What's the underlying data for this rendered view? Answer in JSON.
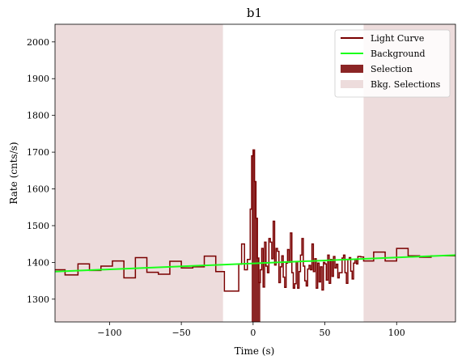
{
  "chart_data": {
    "type": "line",
    "title": "b1",
    "xlabel": "Time (s)",
    "ylabel": "Rate (cnts/s)",
    "xlim": [
      -138,
      141
    ],
    "ylim": [
      1238,
      2048
    ],
    "xticks": [
      -100,
      -50,
      0,
      50,
      100
    ],
    "yticks": [
      1300,
      1400,
      1500,
      1600,
      1700,
      1800,
      1900,
      2000
    ],
    "xtick_labels": [
      "−100",
      "−50",
      "0",
      "50",
      "100"
    ],
    "ytick_labels": [
      "1300",
      "1400",
      "1500",
      "1600",
      "1700",
      "1800",
      "1900",
      "2000"
    ],
    "grid": false,
    "legend_position": "upper right",
    "legend": [
      {
        "label": "Light Curve",
        "kind": "line",
        "color": "#7a0000"
      },
      {
        "label": "Background",
        "kind": "line",
        "color": "#1aff1a"
      },
      {
        "label": "Selection",
        "kind": "patch",
        "color": "#8b2525"
      },
      {
        "label": "Bkg. Selections",
        "kind": "patch",
        "color": "#eddcdc"
      }
    ],
    "bkg_selections": [
      [
        -138,
        -21
      ],
      [
        77,
        141
      ]
    ],
    "selection": [
      -1,
      5
    ],
    "background_line": {
      "x": [
        -138,
        141
      ],
      "y": [
        1375,
        1420
      ]
    },
    "light_curve": {
      "step_edges": [
        -138,
        -131,
        -122,
        -114,
        -106,
        -98,
        -90,
        -82,
        -74,
        -66,
        -58,
        -50,
        -42,
        -34,
        -26,
        -20,
        -10,
        -8,
        -6,
        -4,
        -2,
        -1,
        0,
        1,
        2,
        3,
        4,
        5,
        6,
        7,
        8,
        9,
        10,
        11,
        12,
        13,
        14,
        15,
        16,
        17,
        18,
        19,
        20,
        21,
        22,
        23,
        24,
        25,
        26,
        27,
        28,
        29,
        30,
        31,
        32,
        33,
        34,
        35,
        36,
        37,
        38,
        39,
        40,
        41,
        42,
        43,
        44,
        45,
        46,
        47,
        48,
        49,
        50,
        51,
        52,
        53,
        54,
        55,
        56,
        57,
        58,
        59,
        60,
        61,
        62,
        63,
        64,
        65,
        66,
        67,
        68,
        69,
        70,
        71,
        72,
        73,
        74,
        75,
        76,
        77,
        84,
        92,
        100,
        108,
        116,
        124,
        132,
        141
      ],
      "rates": [
        1380,
        1366,
        1396,
        1378,
        1390,
        1404,
        1358,
        1413,
        1373,
        1368,
        1403,
        1385,
        1388,
        1417,
        1375,
        1322,
        1395,
        1450,
        1380,
        1408,
        1545,
        1690,
        1706,
        1620,
        1520,
        1412,
        1345,
        1380,
        1438,
        1333,
        1455,
        1390,
        1372,
        1465,
        1455,
        1410,
        1512,
        1393,
        1438,
        1430,
        1345,
        1388,
        1418,
        1360,
        1332,
        1398,
        1435,
        1400,
        1480,
        1372,
        1330,
        1342,
        1402,
        1330,
        1375,
        1420,
        1465,
        1390,
        1350,
        1336,
        1382,
        1392,
        1380,
        1450,
        1375,
        1410,
        1330,
        1398,
        1347,
        1388,
        1325,
        1400,
        1396,
        1352,
        1420,
        1343,
        1408,
        1362,
        1416,
        1385,
        1395,
        1358,
        1372,
        1372,
        1412,
        1420,
        1372,
        1343,
        1408,
        1413,
        1376,
        1355,
        1398,
        1408,
        1396,
        1416,
        1416,
        1415,
        1415,
        1404,
        1428,
        1404,
        1438,
        1418,
        1414,
        1418,
        1418
      ]
    }
  }
}
